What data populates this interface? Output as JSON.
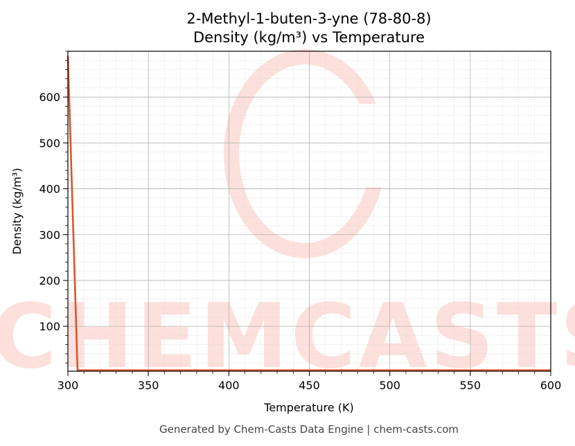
{
  "chart_data": {
    "type": "line",
    "title": "2-Methyl-1-buten-3-yne (78-80-8)",
    "subtitle": "Density (kg/m³) vs Temperature",
    "x_label": "Temperature (K)",
    "y_label": "Density (kg/m³)",
    "footer": "Generated by Chem-Casts Data Engine | chem-casts.com",
    "watermark": "CHEMCASTS",
    "x": [
      300,
      306,
      350,
      400,
      450,
      500,
      550,
      600
    ],
    "series": [
      {
        "name": "Density",
        "color": "#d9542a",
        "values": [
          690,
          4,
          4,
          4,
          4,
          4,
          4,
          4
        ]
      }
    ],
    "xlim": [
      300,
      600
    ],
    "xticks": [
      300,
      350,
      400,
      450,
      500,
      550,
      600
    ],
    "ylim": [
      2,
      700
    ],
    "yticks": [
      100,
      200,
      300,
      400,
      500,
      600
    ],
    "grid": true,
    "minor_grid": true
  }
}
